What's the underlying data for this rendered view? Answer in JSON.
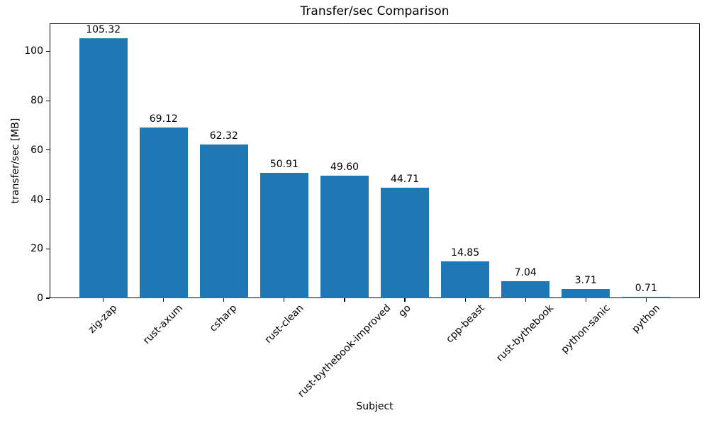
{
  "chart_data": {
    "type": "bar",
    "title": "Transfer/sec Comparison",
    "xlabel": "Subject",
    "ylabel": "transfer/sec [MB]",
    "categories": [
      "zig-zap",
      "rust-axum",
      "csharp",
      "rust-clean",
      "rust-bythebook-improved",
      "go",
      "cpp-beast",
      "rust-bythebook",
      "python-sanic",
      "python"
    ],
    "values": [
      105.32,
      69.12,
      62.32,
      50.91,
      49.6,
      44.71,
      14.85,
      7.04,
      3.71,
      0.71
    ],
    "value_labels": [
      "105.32",
      "69.12",
      "62.32",
      "50.91",
      "49.60",
      "44.71",
      "14.85",
      "7.04",
      "3.71",
      "0.71"
    ],
    "yticks": [
      0,
      20,
      40,
      60,
      80,
      100
    ],
    "ylim": [
      0,
      111.3
    ],
    "xlim_units": [
      -0.89,
      9.89
    ],
    "bar_width_units": 0.8,
    "x_tick_rotation_deg": 45,
    "grid": false,
    "legend_position": "none",
    "bar_color": "#1f77b4",
    "axis_color": "#000000",
    "text_color": "#000000",
    "background_color": "#ffffff"
  }
}
